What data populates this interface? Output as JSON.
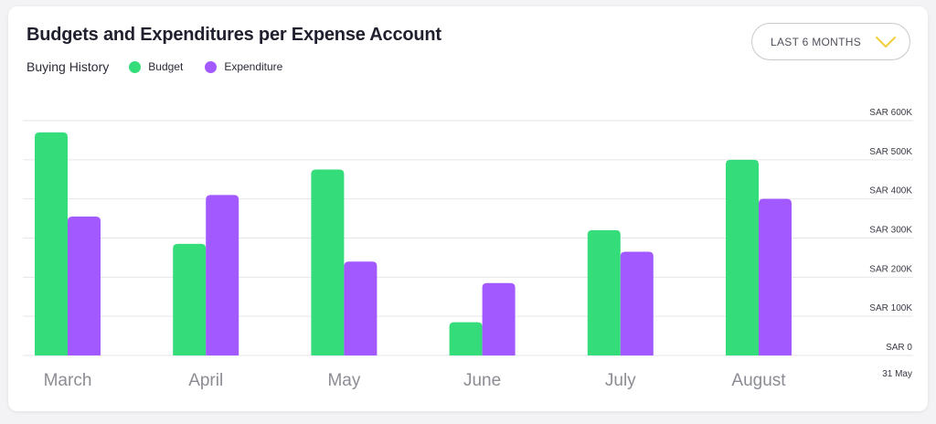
{
  "chart_data": {
    "type": "bar",
    "title": "Budgets and Expenditures per Expense Account",
    "subtitle": "Buying History",
    "categories": [
      "March",
      "April",
      "May",
      "June",
      "July",
      "August"
    ],
    "series": [
      {
        "name": "Budget",
        "color": "#34dc7a",
        "values": [
          570,
          285,
          475,
          85,
          320,
          500
        ]
      },
      {
        "name": "Expenditure",
        "color": "#a259ff",
        "values": [
          355,
          410,
          240,
          185,
          265,
          400
        ]
      }
    ],
    "y_ticks": [
      {
        "value": 0,
        "label": "SAR 0"
      },
      {
        "value": 100,
        "label": "SAR 100K"
      },
      {
        "value": 200,
        "label": "SAR 200K"
      },
      {
        "value": 300,
        "label": "SAR 300K"
      },
      {
        "value": 400,
        "label": "SAR 400K"
      },
      {
        "value": 500,
        "label": "SAR 500K"
      },
      {
        "value": 600,
        "label": "SAR 600K"
      }
    ],
    "ylim": [
      0,
      600
    ],
    "y_axis_position": "right",
    "grid": true,
    "legend": "top-left",
    "date_label": "31 May"
  },
  "filter": {
    "label": "LAST 6 MONTHS",
    "chevron_icon": "chevron-down-icon",
    "accent": "#f2cf3a"
  }
}
